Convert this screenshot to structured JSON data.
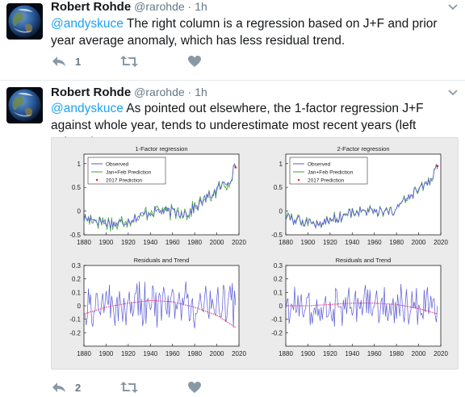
{
  "tweets": [
    {
      "author_name": "Robert Rohde",
      "author_handle": "@rarohde",
      "time": "· 1h",
      "mention": "@andyskuce",
      "text": " The right column is a regression based on J+F and prior year average anomaly, which has less residual trend.",
      "reply_count": "1"
    },
    {
      "author_name": "Robert Rohde",
      "author_handle": "@rarohde",
      "time": "· 1h",
      "mention": "@andyskuce",
      "text": " As pointed out elsewhere, the 1-factor regression J+F against whole year, tends to underestimate most recent years (left column).",
      "reply_count": "2"
    }
  ],
  "icons": {
    "reply": "reply-icon",
    "retweet": "retweet-icon",
    "like": "heart-icon",
    "menu": "chevron-down-icon",
    "avatar": "earth-avatar"
  },
  "colors": {
    "observed": "#5a5ad6",
    "prediction": "#3fa33f",
    "prediction_2017": "#e02020",
    "trend": "#e0408a",
    "mention": "#1da1f2",
    "muted": "#657786"
  },
  "chart_data": [
    {
      "type": "line",
      "title": "1-Factor regression",
      "xlim": [
        1880,
        2020
      ],
      "ylim": [
        -0.5,
        1.2
      ],
      "xticks": [
        1880,
        1900,
        1920,
        1940,
        1960,
        1980,
        2000,
        2020
      ],
      "yticks": [
        -0.5,
        0,
        0.5,
        1
      ],
      "ytick_labels": [
        "-0.5",
        "0",
        "0.5",
        "1"
      ],
      "legend": [
        "Observed",
        "Jan+Feb Prediction",
        "2017 Prediction"
      ],
      "legend_position": "top-left",
      "series_2017": {
        "x": 2017,
        "y": 0.92
      }
    },
    {
      "type": "line",
      "title": "2-Factor regression",
      "xlim": [
        1880,
        2020
      ],
      "ylim": [
        -0.5,
        1.2
      ],
      "xticks": [
        1880,
        1900,
        1920,
        1940,
        1960,
        1980,
        2000,
        2020
      ],
      "yticks": [
        -0.5,
        0,
        0.5,
        1
      ],
      "ytick_labels": [
        "-0.5",
        "0",
        "0.5",
        "1"
      ],
      "legend": [
        "Observed",
        "Jan+Feb Prediction",
        "2017 Prediction"
      ],
      "legend_position": "top-left",
      "series_2017": {
        "x": 2017,
        "y": 0.95
      }
    },
    {
      "type": "line",
      "title": "Residuals and Trend",
      "xlim": [
        1880,
        2020
      ],
      "ylim": [
        -0.3,
        0.3
      ],
      "xticks": [
        1880,
        1900,
        1920,
        1940,
        1960,
        1980,
        2000,
        2020
      ],
      "yticks": [
        -0.2,
        -0.1,
        0,
        0.1,
        0.2,
        0.3
      ],
      "ytick_labels": [
        "-0.2",
        "-0.1",
        "0",
        "0.1",
        "0.2",
        "0.3"
      ],
      "trend": {
        "x": [
          1880,
          1900,
          1920,
          1940,
          1960,
          1980,
          2000,
          2017
        ],
        "y": [
          -0.06,
          -0.01,
          0.02,
          0.04,
          0.03,
          -0.01,
          -0.07,
          -0.16
        ]
      }
    },
    {
      "type": "line",
      "title": "Residuals and Trend",
      "xlim": [
        1880,
        2020
      ],
      "ylim": [
        -0.3,
        0.3
      ],
      "xticks": [
        1880,
        1900,
        1920,
        1940,
        1960,
        1980,
        2000,
        2020
      ],
      "yticks": [
        -0.2,
        -0.1,
        0,
        0.1,
        0.2,
        0.3
      ],
      "ytick_labels": [
        "-0.2",
        "-0.1",
        "0",
        "0.1",
        "0.2",
        "0.3"
      ],
      "trend": {
        "x": [
          1880,
          1900,
          1920,
          1940,
          1960,
          1980,
          2000,
          2017
        ],
        "y": [
          0.0,
          0.0,
          0.01,
          0.02,
          0.02,
          0.01,
          -0.02,
          -0.06
        ]
      }
    }
  ]
}
